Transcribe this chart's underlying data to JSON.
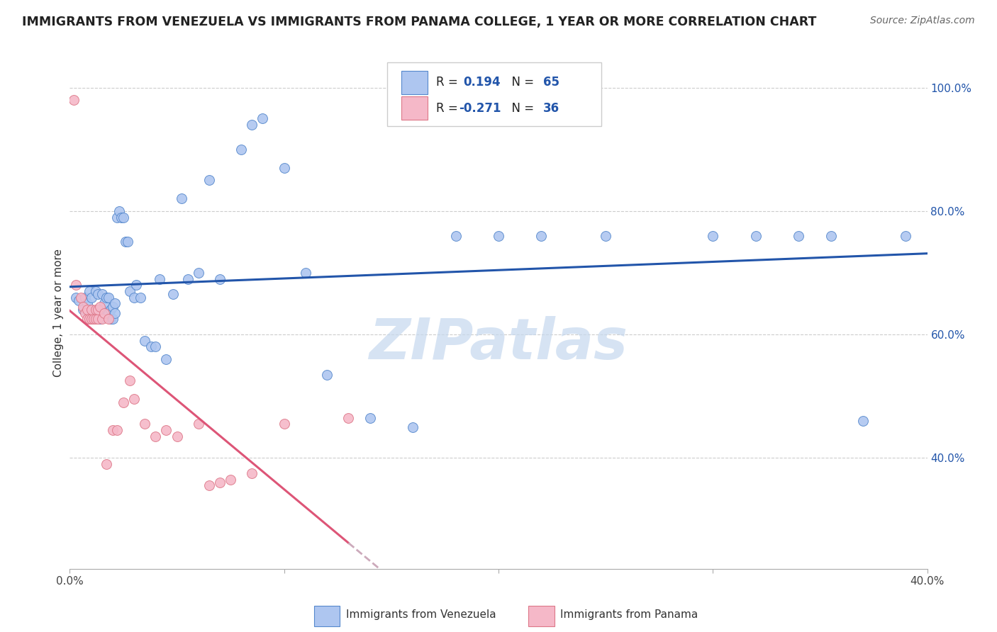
{
  "title": "IMMIGRANTS FROM VENEZUELA VS IMMIGRANTS FROM PANAMA COLLEGE, 1 YEAR OR MORE CORRELATION CHART",
  "source": "Source: ZipAtlas.com",
  "ylabel": "College, 1 year or more",
  "xlim": [
    0.0,
    0.4
  ],
  "ylim": [
    0.22,
    1.05
  ],
  "y_ticks_right": [
    0.4,
    0.6,
    0.8,
    1.0
  ],
  "y_tick_labels_right": [
    "40.0%",
    "60.0%",
    "80.0%",
    "100.0%"
  ],
  "venezuela_scatter_x": [
    0.003,
    0.004,
    0.006,
    0.007,
    0.008,
    0.009,
    0.01,
    0.01,
    0.011,
    0.012,
    0.013,
    0.013,
    0.014,
    0.015,
    0.015,
    0.016,
    0.017,
    0.017,
    0.018,
    0.018,
    0.019,
    0.019,
    0.02,
    0.02,
    0.021,
    0.021,
    0.022,
    0.023,
    0.024,
    0.025,
    0.026,
    0.027,
    0.028,
    0.03,
    0.031,
    0.033,
    0.035,
    0.038,
    0.04,
    0.042,
    0.045,
    0.048,
    0.052,
    0.055,
    0.06,
    0.065,
    0.07,
    0.08,
    0.085,
    0.09,
    0.1,
    0.11,
    0.12,
    0.14,
    0.16,
    0.18,
    0.2,
    0.22,
    0.25,
    0.3,
    0.32,
    0.34,
    0.355,
    0.37,
    0.39
  ],
  "venezuela_scatter_y": [
    0.66,
    0.655,
    0.64,
    0.66,
    0.65,
    0.67,
    0.64,
    0.66,
    0.635,
    0.67,
    0.64,
    0.665,
    0.625,
    0.64,
    0.665,
    0.65,
    0.63,
    0.66,
    0.635,
    0.66,
    0.625,
    0.64,
    0.625,
    0.645,
    0.635,
    0.65,
    0.79,
    0.8,
    0.79,
    0.79,
    0.75,
    0.75,
    0.67,
    0.66,
    0.68,
    0.66,
    0.59,
    0.58,
    0.58,
    0.69,
    0.56,
    0.665,
    0.82,
    0.69,
    0.7,
    0.85,
    0.69,
    0.9,
    0.94,
    0.95,
    0.87,
    0.7,
    0.535,
    0.465,
    0.45,
    0.76,
    0.76,
    0.76,
    0.76,
    0.76,
    0.76,
    0.76,
    0.76,
    0.46,
    0.76
  ],
  "panama_scatter_x": [
    0.002,
    0.003,
    0.005,
    0.006,
    0.007,
    0.008,
    0.008,
    0.009,
    0.01,
    0.01,
    0.011,
    0.012,
    0.012,
    0.013,
    0.013,
    0.014,
    0.015,
    0.016,
    0.017,
    0.018,
    0.02,
    0.022,
    0.025,
    0.028,
    0.03,
    0.035,
    0.04,
    0.045,
    0.05,
    0.06,
    0.065,
    0.07,
    0.075,
    0.085,
    0.1,
    0.13
  ],
  "panama_scatter_y": [
    0.98,
    0.68,
    0.66,
    0.645,
    0.635,
    0.625,
    0.64,
    0.625,
    0.625,
    0.64,
    0.625,
    0.625,
    0.64,
    0.625,
    0.64,
    0.645,
    0.625,
    0.635,
    0.39,
    0.625,
    0.445,
    0.445,
    0.49,
    0.525,
    0.495,
    0.455,
    0.435,
    0.445,
    0.435,
    0.455,
    0.355,
    0.36,
    0.365,
    0.375,
    0.455,
    0.465
  ],
  "dot_color_venezuela": "#aec6f0",
  "dot_color_panama": "#f5b8c8",
  "dot_edge_venezuela": "#5588cc",
  "dot_edge_panama": "#dd7788",
  "line_color_venezuela": "#2255aa",
  "line_color_panama": "#dd5577",
  "line_color_panama_dash": "#ccaabb",
  "watermark_text": "ZIPatlas",
  "watermark_color": "#c5d8ee",
  "background_color": "#ffffff",
  "grid_color": "#cccccc",
  "title_color": "#222222",
  "source_text": "Source: ZipAtlas.com",
  "legend_R1": "0.194",
  "legend_N1": "65",
  "legend_R2": "-0.271",
  "legend_N2": "36"
}
